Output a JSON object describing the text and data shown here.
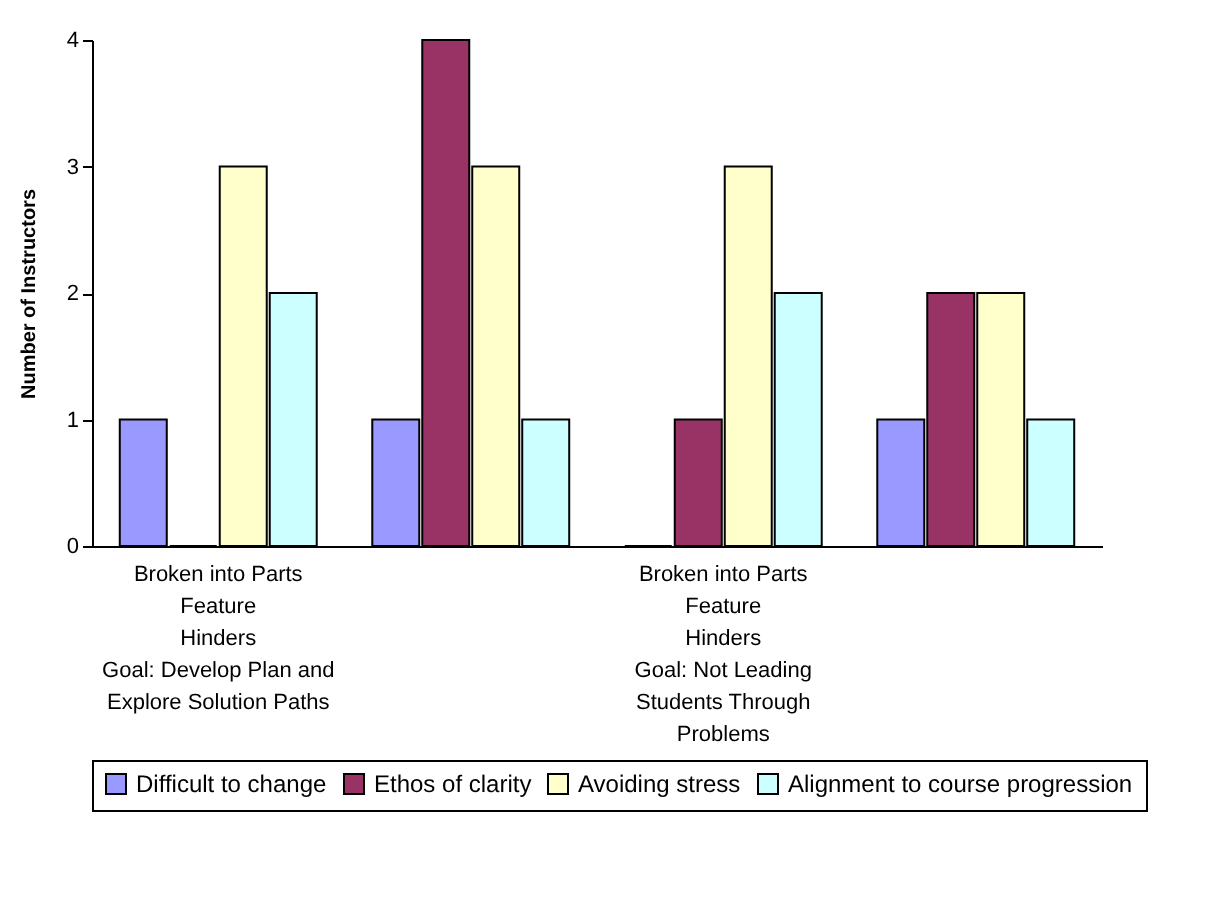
{
  "chart_data": {
    "type": "bar",
    "ylabel": "Number of Instructors",
    "categories": [
      "Broken into Parts\nFeature\nHinders\nGoal: Develop Plan and\nExplore Solution Paths",
      null,
      "Broken into Parts\nFeature\nHinders\nGoal: Not Leading\nStudents Through\nProblems",
      null
    ],
    "series": [
      {
        "name": "Difficult to change",
        "color": "#9999ff",
        "values": [
          1,
          1,
          0,
          1
        ]
      },
      {
        "name": "Ethos of clarity",
        "color": "#993366",
        "values": [
          0,
          4,
          1,
          2
        ]
      },
      {
        "name": "Avoiding stress",
        "color": "#ffffcc",
        "values": [
          3,
          3,
          3,
          2
        ]
      },
      {
        "name": "Alignment to course progression",
        "color": "#ccffff",
        "values": [
          2,
          1,
          2,
          1
        ]
      }
    ],
    "ylim": [
      0,
      4
    ],
    "yticks": [
      0,
      1,
      2,
      3,
      4
    ],
    "grid": false,
    "legend": "bottom"
  }
}
